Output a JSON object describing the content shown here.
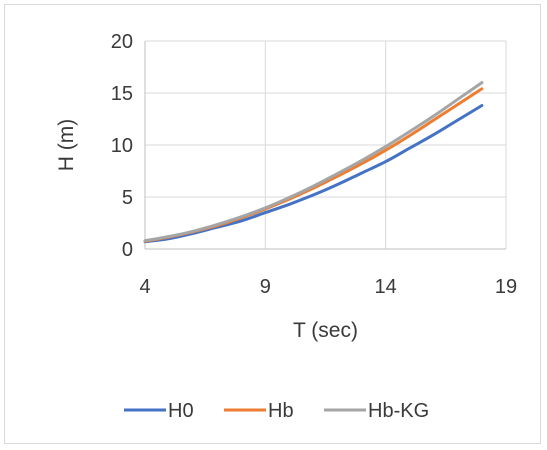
{
  "chart_data": {
    "type": "line",
    "xlabel": "T (sec)",
    "ylabel": "H (m)",
    "xlim": [
      4,
      19
    ],
    "ylim": [
      0,
      20
    ],
    "x_ticks": [
      4,
      9,
      14,
      19
    ],
    "y_ticks": [
      0,
      5,
      10,
      15,
      20
    ],
    "grid": true,
    "legend_position": "bottom",
    "x": [
      4,
      5,
      6,
      7,
      8,
      9,
      10,
      11,
      12,
      13,
      14,
      15,
      16,
      17,
      18
    ],
    "series": [
      {
        "name": "H0",
        "color": "#4472C4",
        "values": [
          0.7,
          1.0,
          1.5,
          2.1,
          2.7,
          3.5,
          4.3,
          5.2,
          6.2,
          7.3,
          8.4,
          9.7,
          11.0,
          12.4,
          13.8
        ]
      },
      {
        "name": "Hb",
        "color": "#ED7D31",
        "values": [
          0.75,
          1.15,
          1.65,
          2.25,
          3.0,
          3.85,
          4.8,
          5.85,
          7.0,
          8.2,
          9.5,
          10.9,
          12.4,
          13.9,
          15.4
        ]
      },
      {
        "name": "Hb-KG",
        "color": "#A5A5A5",
        "values": [
          0.8,
          1.2,
          1.7,
          2.35,
          3.1,
          3.95,
          4.95,
          6.05,
          7.25,
          8.5,
          9.85,
          11.3,
          12.8,
          14.4,
          16.0
        ]
      }
    ]
  }
}
